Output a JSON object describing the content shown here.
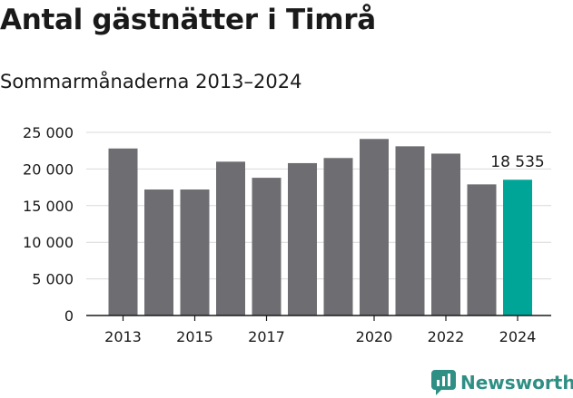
{
  "chart_data": {
    "type": "bar",
    "title": "Antal gästnätter i Timrå",
    "subtitle": "Sommarmånaderna 2013–2024",
    "categories": [
      "2013",
      "2014",
      "2015",
      "2016",
      "2017",
      "2018",
      "2019",
      "2020",
      "2021",
      "2022",
      "2023",
      "2024"
    ],
    "values": [
      22800,
      17200,
      17200,
      21000,
      18800,
      20800,
      21500,
      24100,
      23100,
      22100,
      17900,
      18535
    ],
    "x_tick_labels": [
      "2013",
      "2015",
      "2017",
      "2020",
      "2022",
      "2024"
    ],
    "y_ticks": [
      "0",
      "5 000",
      "10 000",
      "15 000",
      "20 000",
      "25 000"
    ],
    "ylim": [
      0,
      25000
    ],
    "highlight_label": "18 535",
    "grid": true,
    "colors": {
      "bar": "#6e6d72",
      "highlight": "#00a597",
      "grid": "#d9d9d9",
      "axis": "#1a1a1a"
    }
  },
  "brand": {
    "name": "Newsworthy",
    "color": "#2f8f84"
  }
}
